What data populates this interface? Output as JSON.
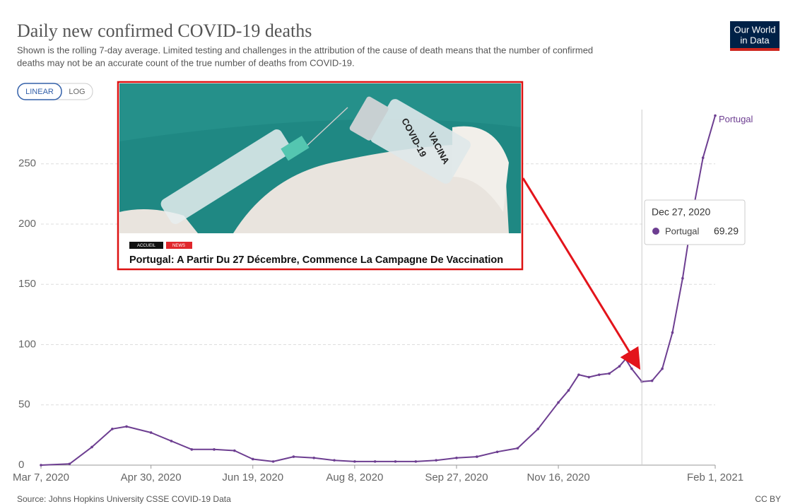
{
  "chart_data": {
    "type": "line",
    "title": "Daily new confirmed COVID-19 deaths",
    "subtitle": [
      "Shown is the rolling 7-day average. Limited testing and challenges in the attribution of the cause of death means that the number of confirmed",
      "deaths may not be an accurate count of the true number of deaths from COVID-19."
    ],
    "source": "Source: Johns Hopkins University CSSE COVID-19 Data",
    "x": [
      "2020-03-07",
      "2020-03-21",
      "2020-04-01",
      "2020-04-11",
      "2020-04-18",
      "2020-04-30",
      "2020-05-10",
      "2020-05-20",
      "2020-05-31",
      "2020-06-10",
      "2020-06-19",
      "2020-06-29",
      "2020-07-09",
      "2020-07-19",
      "2020-07-29",
      "2020-08-08",
      "2020-08-18",
      "2020-08-28",
      "2020-09-07",
      "2020-09-17",
      "2020-09-27",
      "2020-10-07",
      "2020-10-17",
      "2020-10-27",
      "2020-11-06",
      "2020-11-16",
      "2020-11-21",
      "2020-11-26",
      "2020-12-01",
      "2020-12-06",
      "2020-12-11",
      "2020-12-16",
      "2020-12-19",
      "2020-12-22",
      "2020-12-27",
      "2021-01-01",
      "2021-01-06",
      "2021-01-11",
      "2021-01-16",
      "2021-01-21",
      "2021-01-26",
      "2021-02-01"
    ],
    "series": [
      {
        "name": "Portugal",
        "color": "#6d3e91",
        "values": [
          0,
          1,
          15,
          30,
          32,
          27,
          20,
          13,
          13,
          12,
          5,
          3,
          7,
          6,
          4,
          3,
          3,
          3,
          3,
          4,
          6,
          7,
          11,
          14,
          30,
          52,
          62,
          75,
          73,
          75,
          76,
          82,
          88,
          80,
          69.29,
          70,
          80,
          110,
          155,
          210,
          255,
          290
        ]
      }
    ],
    "xlim": [
      "2020-03-07",
      "2021-02-01"
    ],
    "xticks": [
      {
        "value": "2020-03-07",
        "label": "Mar 7, 2020"
      },
      {
        "value": "2020-04-30",
        "label": "Apr 30, 2020"
      },
      {
        "value": "2020-06-19",
        "label": "Jun 19, 2020"
      },
      {
        "value": "2020-08-08",
        "label": "Aug 8, 2020"
      },
      {
        "value": "2020-09-27",
        "label": "Sep 27, 2020"
      },
      {
        "value": "2020-11-16",
        "label": "Nov 16, 2020"
      },
      {
        "value": "2021-02-01",
        "label": "Feb 1, 2021"
      }
    ],
    "ylim": [
      0,
      295
    ],
    "yticks": [
      0,
      50,
      100,
      150,
      200,
      250
    ],
    "grid": true,
    "tooltip": {
      "label": "Dec 27, 2020",
      "x": "2020-12-27",
      "series": "Portugal",
      "value": 69.29
    }
  },
  "controls": [
    "LINEAR",
    "LOG"
  ],
  "logo": [
    "Our World",
    "in Data"
  ],
  "license": "CC BY",
  "news": {
    "tags": [
      "ACCUEIL",
      "NEWS"
    ],
    "image_text": [
      "COVID-19",
      "VACINA"
    ],
    "headline": "Portugal: A Partir Du 27 Décembre, Commence La Campagne De Vaccination"
  }
}
